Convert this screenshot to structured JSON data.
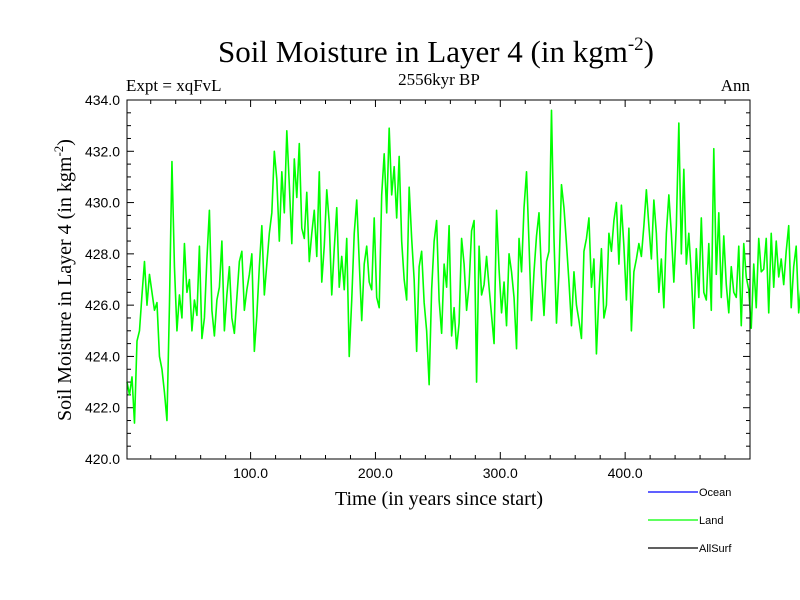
{
  "chart_data": {
    "type": "line",
    "title_main": "Soil Moisture in Layer 4 (in kgm",
    "title_sup": "-2",
    "title_close": ")",
    "subtitle_left": "Expt = xqFvL",
    "subtitle_center": "2556kyr BP",
    "subtitle_right": "Ann",
    "xlabel": "Time (in years since start)",
    "ylabel_main": "Soil Moisture in Layer 4 (in kgm",
    "ylabel_sup": "-2",
    "ylabel_close": ")",
    "xlim": [
      1,
      500
    ],
    "ylim": [
      420,
      434
    ],
    "xticks": [
      100,
      200,
      300,
      400
    ],
    "xtick_labels": [
      "100.0",
      "200.0",
      "300.0",
      "400.0"
    ],
    "yticks": [
      420,
      422,
      424,
      426,
      428,
      430,
      432,
      434
    ],
    "ytick_labels": [
      "420.0",
      "422.0",
      "424.0",
      "426.0",
      "428.0",
      "430.0",
      "432.0",
      "434.0"
    ],
    "legend": [
      {
        "name": "Ocean",
        "color": "#0000ff"
      },
      {
        "name": "Land",
        "color": "#00ff00"
      },
      {
        "name": "AllSurf",
        "color": "#000000"
      }
    ],
    "series": [
      {
        "name": "Land",
        "color": "#00ff00",
        "x_start": 1,
        "x_step": 2,
        "values": [
          423.0,
          422.5,
          423.2,
          421.4,
          424.6,
          425.0,
          426.4,
          427.7,
          426.0,
          427.2,
          426.5,
          425.8,
          426.1,
          424.0,
          423.5,
          422.6,
          421.5,
          426.0,
          431.6,
          427.5,
          425.0,
          426.4,
          425.5,
          428.4,
          426.5,
          427.0,
          425.0,
          426.2,
          425.6,
          428.3,
          424.7,
          425.5,
          427.8,
          429.7,
          425.8,
          424.8,
          426.2,
          426.7,
          428.5,
          425.0,
          426.4,
          427.5,
          425.5,
          424.9,
          426.3,
          427.7,
          428.1,
          425.8,
          426.6,
          427.2,
          428.0,
          424.2,
          425.6,
          427.5,
          429.1,
          426.4,
          427.6,
          428.8,
          429.6,
          432.0,
          430.9,
          428.5,
          431.2,
          429.6,
          432.8,
          430.7,
          428.4,
          431.7,
          430.2,
          432.3,
          429.0,
          428.6,
          430.4,
          427.7,
          428.8,
          429.7,
          427.9,
          431.2,
          426.9,
          428.3,
          430.5,
          429.2,
          426.4,
          428.2,
          429.8,
          426.7,
          427.9,
          426.6,
          428.6,
          424.0,
          426.2,
          428.8,
          430.1,
          427.7,
          425.4,
          427.6,
          428.3,
          426.9,
          426.6,
          429.4,
          426.3,
          425.9,
          430.3,
          431.9,
          429.6,
          432.9,
          430.3,
          431.4,
          429.4,
          431.8,
          428.5,
          427.0,
          426.2,
          430.6,
          428.6,
          427.0,
          424.2,
          427.5,
          428.1,
          426.1,
          425.0,
          422.9,
          426.6,
          428.5,
          429.3,
          426.2,
          424.9,
          427.6,
          426.7,
          429.1,
          424.8,
          425.9,
          424.3,
          425.3,
          428.6,
          427.6,
          425.8,
          426.8,
          428.9,
          429.3,
          423.0,
          428.3,
          426.4,
          426.8,
          427.9,
          426.7,
          425.6,
          424.5,
          429.7,
          427.4,
          425.7,
          426.9,
          425.2,
          428.0,
          427.3,
          426.3,
          424.3,
          428.6,
          427.3,
          429.8,
          431.2,
          428.4,
          425.4,
          427.3,
          428.7,
          429.6,
          427.2,
          425.6,
          427.7,
          428.1,
          433.6,
          428.6,
          425.3,
          427.3,
          430.7,
          429.8,
          428.4,
          426.9,
          425.2,
          427.3,
          426.0,
          425.4,
          424.7,
          428.1,
          428.6,
          429.4,
          426.7,
          427.8,
          424.1,
          426.4,
          428.2,
          425.5,
          426.0,
          428.8,
          428.1,
          429.3,
          430.0,
          427.6,
          429.9,
          428.3,
          426.2,
          429.0,
          425.0,
          427.3,
          427.8,
          428.4,
          427.9,
          429.1,
          430.5,
          429.1,
          427.8,
          430.1,
          428.8,
          426.5,
          427.8,
          425.9,
          428.8,
          430.3,
          428.8,
          426.9,
          429.1,
          433.1,
          428.0,
          431.3,
          427.6,
          428.8,
          427.2,
          425.1,
          428.2,
          426.3,
          429.4,
          426.5,
          426.2,
          428.4,
          425.8,
          432.1,
          427.2,
          429.6,
          426.3,
          428.7,
          426.8,
          425.7,
          427.5,
          426.5,
          426.3,
          428.3,
          425.2,
          428.4,
          427.1,
          426.6,
          425.1,
          427.6,
          425.9,
          428.6,
          427.3,
          427.4,
          428.6,
          425.7,
          428.8,
          426.7,
          428.5,
          427.1,
          427.8,
          426.8,
          428.1,
          429.1,
          425.9,
          427.5,
          428.3,
          425.7,
          426.8,
          426.4,
          428.7,
          426.5,
          428.4,
          427.7,
          426.0,
          429.4,
          426.0,
          427.3,
          428.6,
          425.0,
          426.0,
          427.5,
          428.6,
          426.0,
          429.6,
          426.1,
          427.1,
          425.9,
          428.6,
          426.6,
          430.1,
          427.7,
          427.3,
          425.9,
          428.3,
          430.7,
          423.1,
          426.1,
          429.1,
          425.4,
          428.0,
          427.6,
          427.0,
          425.7,
          426.8,
          428.4,
          430.5,
          428.7,
          426.2,
          427.2,
          427.7,
          426.3,
          426.7,
          428.7,
          427.2,
          429.8,
          426.0,
          428.1,
          426.8,
          425.6,
          428.4,
          426.1,
          428.3,
          426.4,
          422.9,
          426.3,
          431.0,
          428.3,
          430.4,
          427.9,
          428.5,
          429.2,
          427.4,
          428.6,
          426.5,
          427.7,
          427.0,
          425.2,
          425.8,
          429.2,
          428.5,
          426.5,
          427.0,
          424.6,
          425.7,
          427.0,
          428.1,
          429.7,
          428.5,
          426.0,
          427.2,
          424.9,
          428.0,
          424.5,
          426.1,
          427.0,
          426.1,
          423.6,
          427.8,
          425.6
        ]
      },
      {
        "name": "Ocean",
        "color": "#0000ff",
        "values": []
      },
      {
        "name": "AllSurf",
        "color": "#000000",
        "values": []
      }
    ]
  }
}
